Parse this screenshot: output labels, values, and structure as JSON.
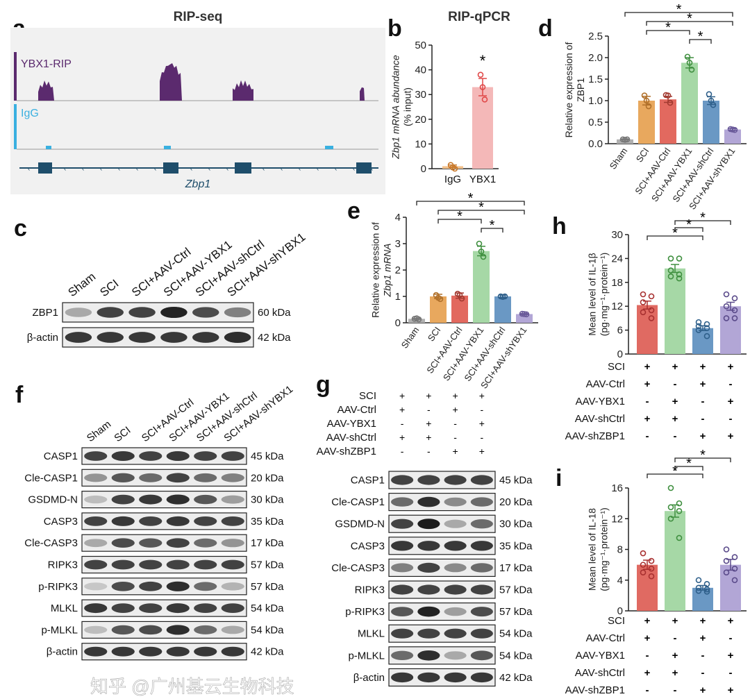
{
  "panels": {
    "a": {
      "letter": "a",
      "title": "RIP-seq",
      "tracks": [
        "YBX1-RIP",
        "IgG"
      ],
      "gene": "Zbp1",
      "colors": {
        "ybx1": "#5b2a6e",
        "igg": "#3ab0e0",
        "gene": "#1f4e6b"
      }
    },
    "b": {
      "letter": "b",
      "title": "RIP-qPCR"
    },
    "c": {
      "letter": "c",
      "lanes": [
        "Sham",
        "SCI",
        "SCI+AAV-Ctrl",
        "SCI+AAV-YBX1",
        "SCI+AAV-shCtrl",
        "SCI+AAV-shYBX1"
      ],
      "rows": [
        {
          "label": "ZBP1",
          "kda": "60 kDa",
          "band_intensity": [
            0.3,
            0.8,
            0.8,
            0.95,
            0.75,
            0.5
          ]
        },
        {
          "label": "β-actin",
          "kda": "42 kDa",
          "band_intensity": [
            0.85,
            0.85,
            0.85,
            0.85,
            0.85,
            0.9
          ]
        }
      ]
    },
    "d": {
      "letter": "d"
    },
    "e": {
      "letter": "e"
    },
    "f": {
      "letter": "f",
      "lanes": [
        "Sham",
        "SCI",
        "SCI+AAV-Ctrl",
        "SCI+AAV-YBX1",
        "SCI+AAV-shCtrl",
        "SCI+AAV-shYBX1"
      ],
      "rows": [
        {
          "label": "CASP1",
          "kda": "45 kDa",
          "band_intensity": [
            0.8,
            0.85,
            0.8,
            0.85,
            0.8,
            0.8
          ]
        },
        {
          "label": "Cle-CASP1",
          "kda": "20 kDa",
          "band_intensity": [
            0.4,
            0.7,
            0.6,
            0.8,
            0.6,
            0.5
          ]
        },
        {
          "label": "GSDMD-N",
          "kda": "30 kDa",
          "band_intensity": [
            0.2,
            0.8,
            0.85,
            0.9,
            0.7,
            0.35
          ]
        },
        {
          "label": "CASP3",
          "kda": "35 kDa",
          "band_intensity": [
            0.8,
            0.85,
            0.8,
            0.85,
            0.8,
            0.8
          ]
        },
        {
          "label": "Cle-CASP3",
          "kda": "17 kDa",
          "band_intensity": [
            0.3,
            0.75,
            0.7,
            0.8,
            0.6,
            0.4
          ]
        },
        {
          "label": "RIPK3",
          "kda": "57 kDa",
          "band_intensity": [
            0.8,
            0.8,
            0.8,
            0.8,
            0.8,
            0.8
          ]
        },
        {
          "label": "p-RIPK3",
          "kda": "57 kDa",
          "band_intensity": [
            0.15,
            0.75,
            0.8,
            0.9,
            0.6,
            0.25
          ]
        },
        {
          "label": "MLKL",
          "kda": "54 kDa",
          "band_intensity": [
            0.85,
            0.8,
            0.8,
            0.85,
            0.8,
            0.8
          ]
        },
        {
          "label": "p-MLKL",
          "kda": "54 kDa",
          "band_intensity": [
            0.2,
            0.7,
            0.75,
            0.9,
            0.6,
            0.3
          ]
        },
        {
          "label": "β-actin",
          "kda": "42 kDa",
          "band_intensity": [
            0.85,
            0.85,
            0.85,
            0.85,
            0.85,
            0.85
          ]
        }
      ]
    },
    "g": {
      "letter": "g",
      "conditions": [
        {
          "label": "SCI",
          "signs": [
            "+",
            "+",
            "+",
            "+"
          ]
        },
        {
          "label": "AAV-Ctrl",
          "signs": [
            "+",
            "-",
            "+",
            "-"
          ]
        },
        {
          "label": "AAV-YBX1",
          "signs": [
            "-",
            "+",
            "-",
            "+"
          ]
        },
        {
          "label": "AAV-shCtrl",
          "signs": [
            "+",
            "+",
            "-",
            "-"
          ]
        },
        {
          "label": "AAV-shZBP1",
          "signs": [
            "-",
            "-",
            "+",
            "+"
          ]
        }
      ],
      "rows": [
        {
          "label": "CASP1",
          "kda": "45 kDa",
          "band_intensity": [
            0.8,
            0.8,
            0.8,
            0.8
          ]
        },
        {
          "label": "Cle-CASP1",
          "kda": "20 kDa",
          "band_intensity": [
            0.6,
            0.9,
            0.45,
            0.6
          ]
        },
        {
          "label": "GSDMD-N",
          "kda": "30 kDa",
          "band_intensity": [
            0.8,
            0.98,
            0.3,
            0.6
          ]
        },
        {
          "label": "CASP3",
          "kda": "35 kDa",
          "band_intensity": [
            0.85,
            0.85,
            0.85,
            0.85
          ]
        },
        {
          "label": "Cle-CASP3",
          "kda": "17 kDa",
          "band_intensity": [
            0.5,
            0.8,
            0.45,
            0.6
          ]
        },
        {
          "label": "RIPK3",
          "kda": "57 kDa",
          "band_intensity": [
            0.8,
            0.8,
            0.8,
            0.8
          ]
        },
        {
          "label": "p-RIPK3",
          "kda": "57 kDa",
          "band_intensity": [
            0.7,
            0.95,
            0.35,
            0.75
          ]
        },
        {
          "label": "MLKL",
          "kda": "54 kDa",
          "band_intensity": [
            0.8,
            0.8,
            0.8,
            0.8
          ]
        },
        {
          "label": "p-MLKL",
          "kda": "54 kDa",
          "band_intensity": [
            0.6,
            0.9,
            0.3,
            0.7
          ]
        },
        {
          "label": "β-actin",
          "kda": "42 kDa",
          "band_intensity": [
            0.85,
            0.85,
            0.85,
            0.85
          ]
        }
      ]
    },
    "h": {
      "letter": "h"
    },
    "i": {
      "letter": "i"
    }
  },
  "watermark": "知乎 @广州基云生物科技",
  "chart_data": [
    {
      "id": "b",
      "type": "bar",
      "ylabel": "Zbp1 mRNA abundance",
      "ylabel2": "(% input)",
      "categories": [
        "IgG",
        "YBX1"
      ],
      "values": [
        1,
        33
      ],
      "sem": [
        0.5,
        3.5
      ],
      "points": [
        [
          1.5,
          0.5,
          0
        ],
        [
          38,
          33,
          28
        ]
      ],
      "ylim": [
        0,
        50
      ],
      "yticks": [
        0,
        10,
        20,
        30,
        40,
        50
      ],
      "colors": [
        "#f2c08a",
        "#f4b8b8"
      ],
      "point_colors": [
        "#c8782a",
        "#e04848"
      ],
      "annotations": [
        {
          "bar": 1,
          "label": "*"
        }
      ]
    },
    {
      "id": "d",
      "type": "bar",
      "ylabel": "Relative expression of",
      "ylabel2": "ZBP1",
      "categories": [
        "Sham",
        "SCI",
        "SCI+AAV-Ctrl",
        "SCI+AAV-YBX1",
        "SCI+AAV-shCtrl",
        "SCI+AAV-shYBX1"
      ],
      "values": [
        0.1,
        1.0,
        1.03,
        1.88,
        1.0,
        0.33
      ],
      "sem": [
        0.01,
        0.1,
        0.07,
        0.12,
        0.09,
        0.02
      ],
      "points": [
        [
          0.1,
          0.09,
          0.1
        ],
        [
          1.12,
          1.0,
          0.87
        ],
        [
          1.13,
          1.12,
          0.95
        ],
        [
          2.02,
          1.88,
          1.72
        ],
        [
          1.15,
          1.0,
          0.9
        ],
        [
          0.34,
          0.33,
          0.32
        ]
      ],
      "ylim": [
        0,
        2.5
      ],
      "yticks": [
        "0.0",
        "0.5",
        "1.0",
        "1.5",
        "2.0",
        "2.5"
      ],
      "colors": [
        "#b0b0b0",
        "#e8a85e",
        "#e2695f",
        "#a6d8a6",
        "#6a98c4",
        "#b2a6d6"
      ],
      "point_colors": [
        "#777",
        "#b0702a",
        "#a23a30",
        "#3f8f3f",
        "#2e5f8a",
        "#6a5a9a"
      ],
      "significance": [
        {
          "from": 0,
          "to": 5,
          "label": "*"
        },
        {
          "from": 1,
          "to": 5,
          "label": "*"
        },
        {
          "from": 1,
          "to": 3,
          "label": "*"
        },
        {
          "from": 3,
          "to": 4,
          "label": "*"
        }
      ]
    },
    {
      "id": "e",
      "type": "bar",
      "ylabel": "Relative expression of",
      "ylabel2": "Zbp1 mRNA",
      "categories": [
        "Sham",
        "SCI",
        "SCI+AAV-Ctrl",
        "SCI+AAV-YBX1",
        "SCI+AAV-shCtrl",
        "SCI+AAV-shYBX1"
      ],
      "values": [
        0.15,
        1.0,
        1.03,
        2.72,
        1.0,
        0.33
      ],
      "sem": [
        0.02,
        0.08,
        0.1,
        0.18,
        0.05,
        0.02
      ],
      "points": [
        [
          0.15,
          0.17,
          0.13
        ],
        [
          1.05,
          0.95,
          0.9
        ],
        [
          1.1,
          1.05,
          0.92
        ],
        [
          3.0,
          2.7,
          2.5
        ],
        [
          1.0,
          0.98,
          1.0
        ],
        [
          0.34,
          0.33,
          0.32
        ]
      ],
      "ylim": [
        0,
        4
      ],
      "yticks": [
        "0",
        "1",
        "2",
        "3",
        "4"
      ],
      "colors": [
        "#b0b0b0",
        "#e8a85e",
        "#e2695f",
        "#a6d8a6",
        "#6a98c4",
        "#b2a6d6"
      ],
      "point_colors": [
        "#777",
        "#b0702a",
        "#a23a30",
        "#3f8f3f",
        "#2e5f8a",
        "#6a5a9a"
      ],
      "significance": [
        {
          "from": 0,
          "to": 5,
          "label": "*"
        },
        {
          "from": 1,
          "to": 5,
          "label": "*"
        },
        {
          "from": 1,
          "to": 3,
          "label": "*"
        },
        {
          "from": 3,
          "to": 4,
          "label": "*"
        }
      ]
    },
    {
      "id": "h",
      "type": "bar",
      "ylabel": "Mean level of IL-1β",
      "ylabel2": "(pg·mg⁻¹·protein⁻¹)",
      "categories": [
        "1",
        "2",
        "3",
        "4"
      ],
      "values": [
        12.3,
        21.5,
        6.5,
        12.0
      ],
      "sem": [
        1.0,
        1.0,
        0.6,
        1.0
      ],
      "points": [
        [
          15,
          14.5,
          13,
          11,
          10.5,
          9
        ],
        [
          24,
          24,
          21,
          20,
          19.5,
          19
        ],
        [
          8,
          7.5,
          7,
          6.5,
          6,
          4.5
        ],
        [
          15,
          14,
          12,
          11,
          9,
          9
        ]
      ],
      "ylim": [
        0,
        30
      ],
      "yticks": [
        "0",
        "6",
        "12",
        "18",
        "24",
        "30"
      ],
      "colors": [
        "#e06a62",
        "#a6d8a6",
        "#6a98c4",
        "#b2a6d6"
      ],
      "point_colors": [
        "#a83030",
        "#3f8f3f",
        "#2e5f8a",
        "#5a4a8a"
      ],
      "conditions": [
        {
          "label": "SCI",
          "signs": [
            "+",
            "+",
            "+",
            "+"
          ]
        },
        {
          "label": "AAV-Ctrl",
          "signs": [
            "+",
            "-",
            "+",
            "-"
          ]
        },
        {
          "label": "AAV-YBX1",
          "signs": [
            "-",
            "+",
            "-",
            "+"
          ]
        },
        {
          "label": "AAV-shCtrl",
          "signs": [
            "+",
            "+",
            "-",
            "-"
          ]
        },
        {
          "label": "AAV-shZBP1",
          "signs": [
            "-",
            "-",
            "+",
            "+"
          ]
        }
      ],
      "significance": [
        {
          "from": 0,
          "to": 2,
          "label": "*"
        },
        {
          "from": 1,
          "to": 2,
          "label": "*"
        },
        {
          "from": 1,
          "to": 3,
          "label": "*"
        }
      ]
    },
    {
      "id": "i",
      "type": "bar",
      "ylabel": "Mean level of IL-18",
      "ylabel2": "(pg·mg⁻¹·protein⁻¹)",
      "categories": [
        "1",
        "2",
        "3",
        "4"
      ],
      "values": [
        6.0,
        13.0,
        3.0,
        6.0
      ],
      "sem": [
        0.6,
        0.8,
        0.3,
        0.7
      ],
      "points": [
        [
          7.5,
          6.5,
          6,
          5.5,
          5,
          4.5
        ],
        [
          16,
          14,
          13.5,
          13,
          12,
          9.5
        ],
        [
          4,
          3.5,
          3,
          2.8,
          2.6,
          2.5
        ],
        [
          8,
          7,
          6.5,
          5.5,
          5,
          4
        ]
      ],
      "ylim": [
        0,
        16
      ],
      "yticks": [
        "0",
        "4",
        "8",
        "12",
        "16"
      ],
      "colors": [
        "#e06a62",
        "#a6d8a6",
        "#6a98c4",
        "#b2a6d6"
      ],
      "point_colors": [
        "#a83030",
        "#3f8f3f",
        "#2e5f8a",
        "#5a4a8a"
      ],
      "conditions": [
        {
          "label": "SCI",
          "signs": [
            "+",
            "+",
            "+",
            "+"
          ]
        },
        {
          "label": "AAV-Ctrl",
          "signs": [
            "+",
            "-",
            "+",
            "-"
          ]
        },
        {
          "label": "AAV-YBX1",
          "signs": [
            "-",
            "+",
            "-",
            "+"
          ]
        },
        {
          "label": "AAV-shCtrl",
          "signs": [
            "+",
            "+",
            "-",
            "-"
          ]
        },
        {
          "label": "AAV-shZBP1",
          "signs": [
            "-",
            "-",
            "+",
            "+"
          ]
        }
      ],
      "significance": [
        {
          "from": 0,
          "to": 2,
          "label": "*"
        },
        {
          "from": 1,
          "to": 2,
          "label": "*"
        },
        {
          "from": 1,
          "to": 3,
          "label": "*"
        }
      ]
    }
  ]
}
